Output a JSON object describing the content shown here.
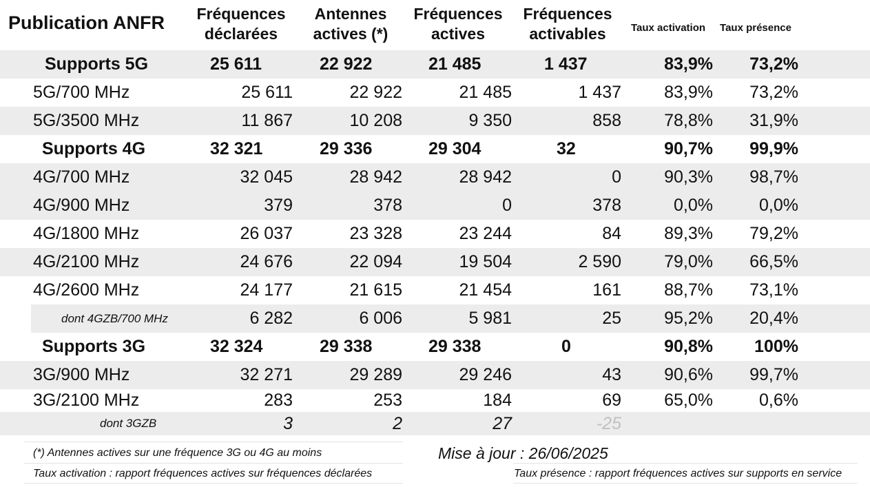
{
  "title": "Publication ANFR",
  "headers": {
    "h1a": "Fréquences",
    "h1b": "déclarées",
    "h2a": "Antennes",
    "h2b": "actives (*)",
    "h3a": "Fréquences",
    "h3b": "actives",
    "h4a": "Fréquences",
    "h4b": "activables",
    "h5": "Taux activation",
    "h6": "Taux présence"
  },
  "rows": [
    {
      "label": "Supports 5G",
      "c1": "25 611",
      "c2": "22 922",
      "c3": "21 485",
      "c4": "1 437",
      "c5": "83,9%",
      "c6": "73,2%"
    },
    {
      "label": "5G/700 MHz",
      "c1": "25 611",
      "c2": "22 922",
      "c3": "21 485",
      "c4": "1 437",
      "c5": "83,9%",
      "c6": "73,2%"
    },
    {
      "label": "5G/3500 MHz",
      "c1": "11 867",
      "c2": "10 208",
      "c3": "9 350",
      "c4": "858",
      "c5": "78,8%",
      "c6": "31,9%"
    },
    {
      "label": "Supports 4G",
      "c1": "32 321",
      "c2": "29 336",
      "c3": "29 304",
      "c4": "32",
      "c5": "90,7%",
      "c6": "99,9%"
    },
    {
      "label": "4G/700 MHz",
      "c1": "32 045",
      "c2": "28 942",
      "c3": "28 942",
      "c4": "0",
      "c5": "90,3%",
      "c6": "98,7%"
    },
    {
      "label": "4G/900 MHz",
      "c1": "379",
      "c2": "378",
      "c3": "0",
      "c4": "378",
      "c5": "0,0%",
      "c6": "0,0%"
    },
    {
      "label": "4G/1800 MHz",
      "c1": "26 037",
      "c2": "23 328",
      "c3": "23 244",
      "c4": "84",
      "c5": "89,3%",
      "c6": "79,2%"
    },
    {
      "label": "4G/2100 MHz",
      "c1": "24 676",
      "c2": "22 094",
      "c3": "19 504",
      "c4": "2 590",
      "c5": "79,0%",
      "c6": "66,5%"
    },
    {
      "label": "4G/2600 MHz",
      "c1": "24 177",
      "c2": "21 615",
      "c3": "21 454",
      "c4": "161",
      "c5": "88,7%",
      "c6": "73,1%"
    },
    {
      "label": "dont 4GZB/700 MHz",
      "c1": "6 282",
      "c2": "6 006",
      "c3": "5 981",
      "c4": "25",
      "c5": "95,2%",
      "c6": "20,4%"
    },
    {
      "label": "Supports 3G",
      "c1": "32 324",
      "c2": "29 338",
      "c3": "29 338",
      "c4": "0",
      "c5": "90,8%",
      "c6": "100%"
    },
    {
      "label": "3G/900 MHz",
      "c1": "32 271",
      "c2": "29 289",
      "c3": "29 246",
      "c4": "43",
      "c5": "90,6%",
      "c6": "99,7%"
    },
    {
      "label": "3G/2100 MHz",
      "c1": "283",
      "c2": "253",
      "c3": "184",
      "c4": "69",
      "c5": "65,0%",
      "c6": "0,6%"
    },
    {
      "label": "dont 3GZB",
      "c1": "3",
      "c2": "2",
      "c3": "27",
      "c4": "-25",
      "c5": "",
      "c6": ""
    }
  ],
  "footer": {
    "note1": "(*) Antennes actives sur une fréquence 3G ou 4G au moins",
    "note2": "Taux activation : rapport fréquences actives sur fréquences déclarées",
    "update": "Mise à jour : 26/06/2025",
    "note3": "Taux présence : rapport fréquences actives sur supports en service"
  },
  "colors": {
    "stripe": "#ececec",
    "text": "#111111",
    "muted": "#c0c0c0"
  }
}
